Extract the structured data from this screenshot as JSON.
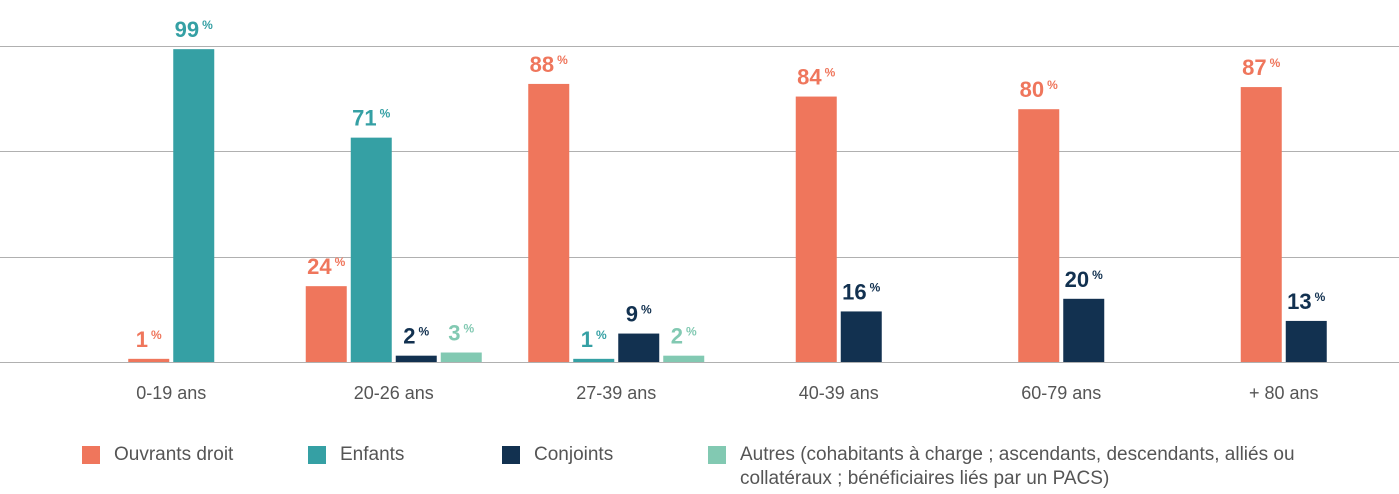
{
  "chart_data": {
    "type": "bar",
    "categories": [
      "0-19 ans",
      "20-26 ans",
      "27-39 ans",
      "40-39 ans",
      "60-79 ans",
      "+ 80 ans"
    ],
    "unit": "%",
    "series": [
      {
        "name": "Ouvrants droit",
        "color": "#ef765c",
        "values": [
          1,
          24,
          88,
          84,
          80,
          87
        ]
      },
      {
        "name": "Enfants",
        "color": "#35a0a4",
        "values": [
          99,
          71,
          1,
          null,
          null,
          null
        ]
      },
      {
        "name": "Conjoints",
        "color": "#123150",
        "values": [
          null,
          2,
          9,
          16,
          20,
          13
        ]
      },
      {
        "name": "Autres (cohabitants à charge ; ascendants, descendants, alliés ou collatéraux ; bénéficiaires liés par un PACS)",
        "color": "#82c9b2",
        "values": [
          null,
          3,
          2,
          null,
          null,
          null
        ]
      }
    ],
    "ylim": [
      0,
      100
    ],
    "yticks": [
      0,
      33.3,
      66.7,
      100
    ],
    "grid": true
  }
}
